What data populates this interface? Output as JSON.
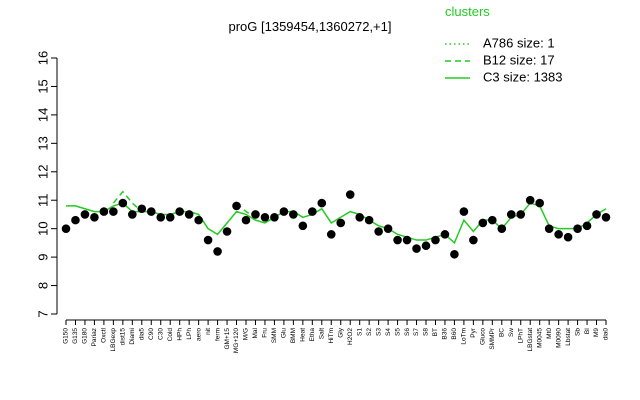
{
  "chart_data": {
    "type": "line",
    "title": "proG [1359454,1360272,+1]",
    "legend_title": "clusters",
    "legend_position": "top-right",
    "ylim": [
      7,
      16
    ],
    "yticks": [
      7,
      8,
      9,
      10,
      11,
      12,
      13,
      14,
      15,
      16
    ],
    "categories": [
      "G150",
      "G135",
      "G180",
      "Pariaz",
      "Oxctl",
      "LBGexp",
      "dist15",
      "Diami",
      "dia5",
      "C90",
      "C30",
      "Cold",
      "HPh",
      "LPh",
      "aero",
      "nit",
      "ferm",
      "GM+15",
      "MG+120",
      "M/G",
      "Mal",
      "Fru",
      "SMM",
      "Glu",
      "BMM",
      "Heat",
      "Etha",
      "Salt",
      "HiTm",
      "Gly",
      "H2O2",
      "S1",
      "S2",
      "S3",
      "S4",
      "S5",
      "S6",
      "S7",
      "S8",
      "BT",
      "B36",
      "B60",
      "LoTm",
      "Pyr",
      "Gluco",
      "SMMPr",
      "BC",
      "Sw",
      "LPhT",
      "LBGstat",
      "M0045",
      "Mt0",
      "M0090",
      "Lbstat",
      "Sb",
      "BI",
      "M9",
      "dia0"
    ],
    "points": {
      "color": "#000000",
      "values": [
        10.0,
        10.3,
        10.5,
        10.4,
        10.6,
        10.6,
        10.9,
        10.5,
        10.7,
        10.6,
        10.4,
        10.4,
        10.6,
        10.5,
        10.3,
        9.6,
        9.2,
        9.9,
        10.8,
        10.3,
        10.5,
        10.4,
        10.4,
        10.6,
        10.5,
        10.1,
        10.6,
        10.9,
        9.8,
        10.2,
        11.2,
        10.4,
        10.3,
        9.9,
        10.0,
        9.6,
        9.6,
        9.3,
        9.4,
        9.6,
        9.8,
        9.1,
        10.6,
        9.6,
        10.2,
        10.3,
        10.0,
        10.5,
        10.5,
        11.0,
        10.9,
        10.0,
        9.8,
        9.7,
        10.0,
        10.1,
        10.5,
        10.4
      ]
    },
    "series": [
      {
        "name": "A786 size: 1",
        "color": "#22cc22",
        "dash": "dotted",
        "values": [
          null,
          null,
          null,
          null,
          null,
          null,
          null,
          null,
          null,
          null,
          null,
          null,
          null,
          null,
          null,
          null,
          null,
          null,
          null,
          null,
          null,
          null,
          null,
          null,
          null,
          null,
          null,
          null,
          null,
          null,
          null,
          null,
          null,
          null,
          null,
          null,
          null,
          null,
          null,
          null,
          null,
          null,
          null,
          null,
          null,
          null,
          null,
          null,
          null,
          null,
          null,
          null,
          null,
          null,
          null,
          null,
          null,
          null
        ]
      },
      {
        "name": "B12 size: 17",
        "color": "#22cc22",
        "dash": "dashed",
        "values": [
          null,
          null,
          null,
          null,
          null,
          10.9,
          11.3,
          10.9,
          10.6,
          null,
          null,
          null,
          null,
          null,
          null,
          null,
          null,
          null,
          10.9,
          10.6,
          10.4,
          null,
          null,
          null,
          null,
          null,
          null,
          null,
          null,
          null,
          null,
          null,
          null,
          null,
          null,
          null,
          null,
          null,
          null,
          null,
          null,
          null,
          null,
          null,
          null,
          null,
          null,
          null,
          null,
          null,
          null,
          null,
          null,
          null,
          null,
          null,
          null,
          null
        ]
      },
      {
        "name": "C3 size: 1383",
        "color": "#22cc22",
        "dash": "solid",
        "values": [
          10.8,
          10.8,
          10.7,
          10.6,
          10.6,
          10.8,
          10.9,
          10.6,
          10.6,
          10.6,
          10.5,
          10.5,
          10.6,
          10.6,
          10.5,
          10.0,
          9.8,
          10.2,
          10.6,
          10.5,
          10.3,
          10.2,
          10.4,
          10.6,
          10.6,
          10.4,
          10.5,
          10.7,
          10.2,
          10.4,
          10.6,
          10.5,
          10.3,
          10.1,
          10.0,
          9.8,
          9.7,
          9.6,
          9.6,
          9.7,
          9.8,
          9.5,
          10.3,
          9.9,
          10.3,
          10.3,
          10.0,
          10.4,
          10.5,
          10.9,
          10.8,
          10.1,
          10.0,
          10.0,
          10.0,
          10.2,
          10.5,
          10.7
        ]
      }
    ]
  }
}
